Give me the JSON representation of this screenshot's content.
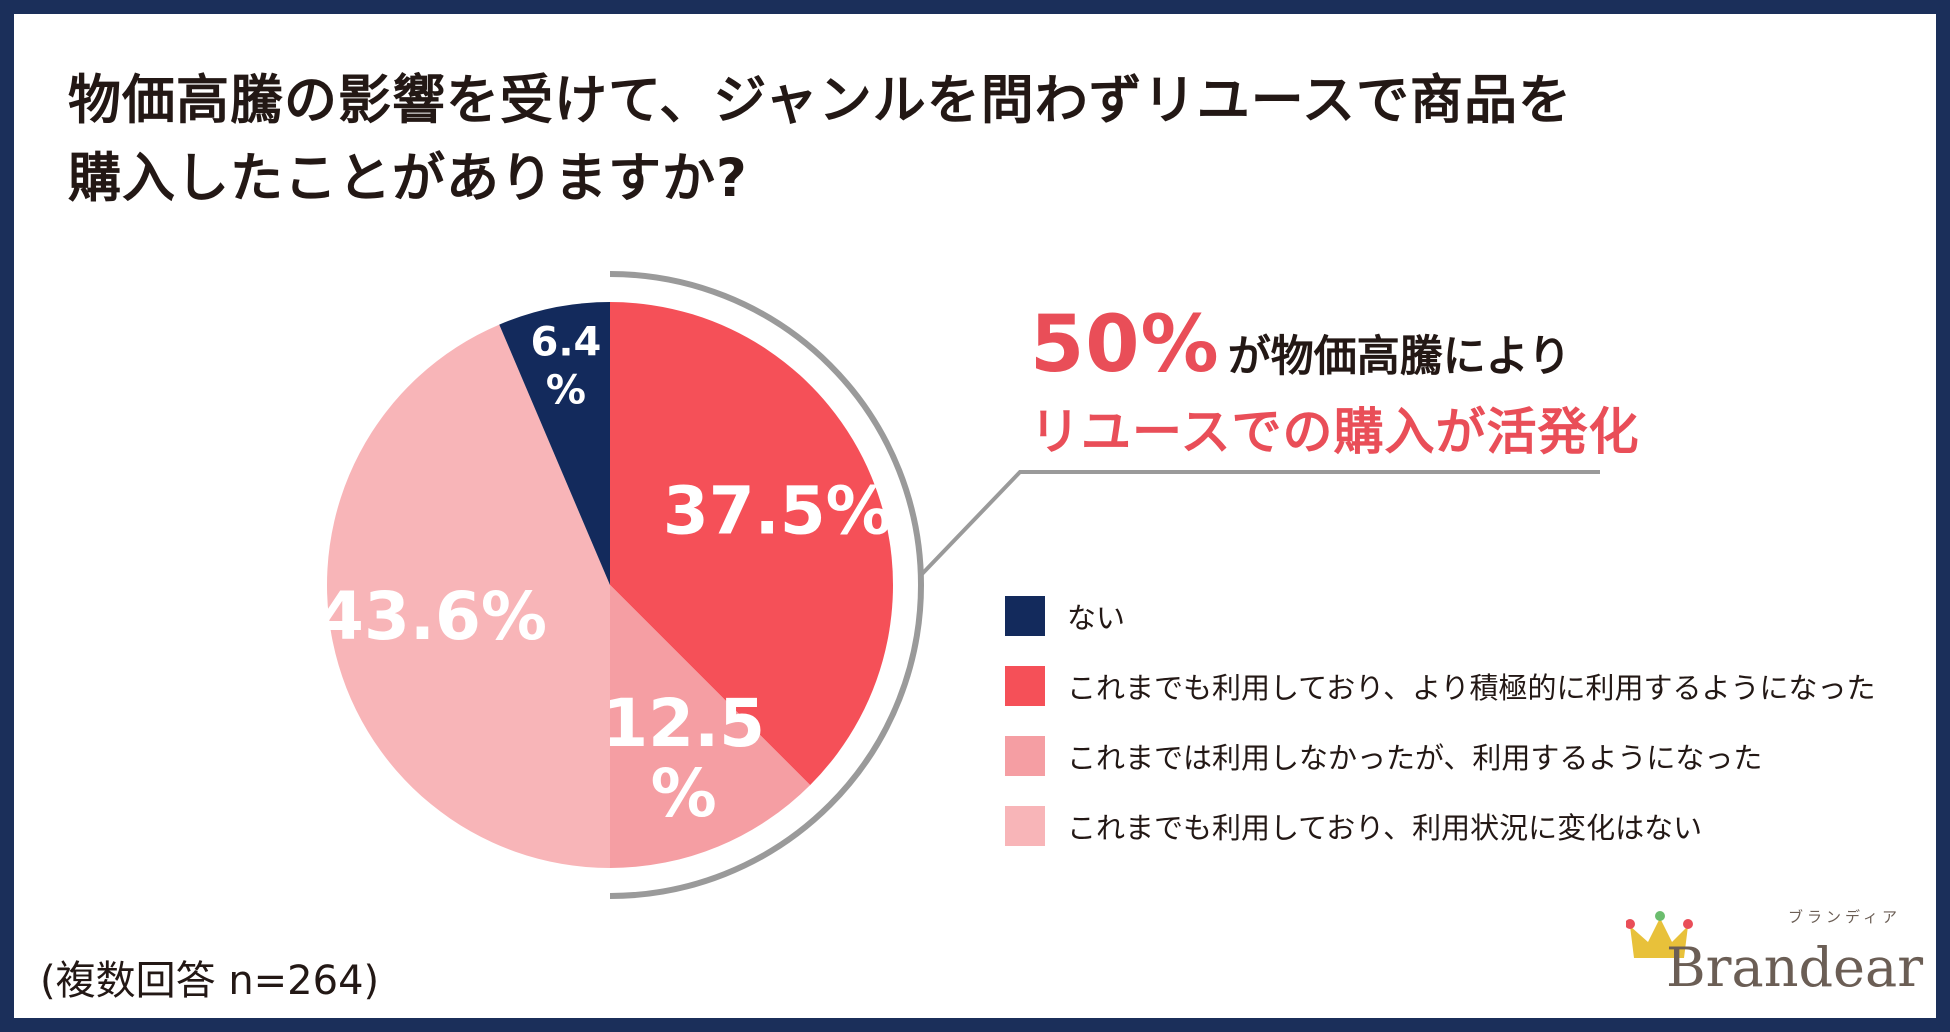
{
  "title": {
    "line1": "物価高騰の影響を受けて、ジャンルを問わずリユースで商品を",
    "line2": "購入したことがありますか?"
  },
  "headline": {
    "big": "50%",
    "rest": "が物価高騰により",
    "line2": "リユースでの購入が活発化"
  },
  "note": "(複数回答 n=264)",
  "logo": {
    "name": "Brandear",
    "kana": "ブランディア"
  },
  "colors": {
    "border": "#1b2f5a",
    "accent": "#e94e58",
    "text": "#231815",
    "bracket": "#9a9a9a"
  },
  "chart_data": {
    "type": "pie",
    "start": "12 o'clock, clockwise",
    "slices": [
      {
        "label": "これまでも利用しており、より積極的に利用するようになった",
        "value": 37.5,
        "value_label_1": "37.5%",
        "value_label_2": "",
        "color": "#f55058",
        "label_color": "#ffffff"
      },
      {
        "label": "これまでは利用しなかったが、利用するようになった",
        "value": 12.5,
        "value_label_1": "12.5",
        "value_label_2": "%",
        "color": "#f59ea3",
        "label_color": "#ffffff"
      },
      {
        "label": "これまでも利用しており、利用状況に変化はない",
        "value": 43.6,
        "value_label_1": "43.6%",
        "value_label_2": "",
        "color": "#f8b5b8",
        "label_color": "#ffffff"
      },
      {
        "label": "ない",
        "value": 6.4,
        "value_label_1": "6.4",
        "value_label_2": "%",
        "color": "#132a5c",
        "label_color": "#ffffff"
      }
    ],
    "legend_order": [
      "ない",
      "これまでも利用しており、より積極的に利用するようになった",
      "これまでは利用しなかったが、利用するようになった",
      "これまでも利用しており、利用状況に変化はない"
    ],
    "legend_colors": [
      "#132a5c",
      "#f55058",
      "#f59ea3",
      "#f8b5b8"
    ],
    "legend_placement": "right"
  }
}
